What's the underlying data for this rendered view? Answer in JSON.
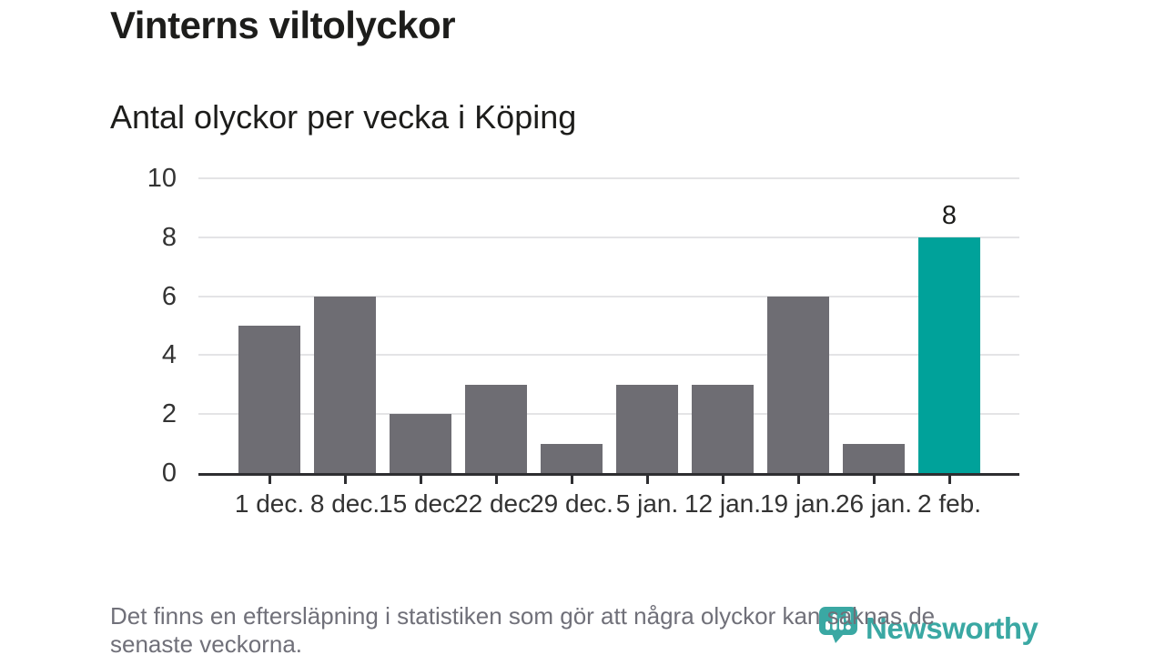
{
  "title": "Vinterns viltolyckor",
  "subtitle": "Antal olyckor per vecka i Köping",
  "footnote": {
    "line1": "Det finns en eftersläpning i statistiken som gör att några olyckor kan saknas de",
    "line2": "senaste veckorna."
  },
  "logo": {
    "wordmark": "Newsworthy",
    "icon": "newsworthy-bubble-barchart-icon"
  },
  "colors": {
    "bar": "#6e6d73",
    "highlight": "#00a29a",
    "logo_teal": "#3aa8a3",
    "axis": "#2e2e31",
    "grid": "#e4e4e6",
    "text": "#1d1d1b",
    "muted_text": "#707079"
  },
  "chart_data": {
    "type": "bar",
    "title": "Vinterns viltolyckor",
    "subtitle": "Antal olyckor per vecka i Köping",
    "categories": [
      "1 dec.",
      "8 dec.",
      "15 dec.",
      "22 dec.",
      "29 dec.",
      "5 jan.",
      "12 jan.",
      "19 jan.",
      "26 jan.",
      "2 feb."
    ],
    "values": [
      5,
      6,
      2,
      3,
      1,
      3,
      3,
      6,
      1,
      8
    ],
    "highlight_index": 9,
    "value_label": {
      "index": 9,
      "text": "8"
    },
    "xlabel": "",
    "ylabel": "",
    "yticks": [
      0,
      2,
      4,
      6,
      8,
      10
    ],
    "ylim": [
      0,
      10
    ],
    "grid": "horizontal",
    "legend": "none"
  }
}
